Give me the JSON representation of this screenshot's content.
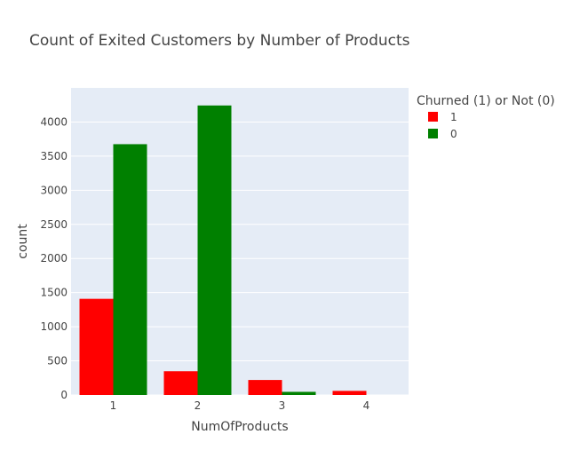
{
  "chart_data": {
    "type": "bar",
    "title": "Count of Exited Customers by Number of Products",
    "xlabel": "NumOfProducts",
    "ylabel": "count",
    "categories": [
      "1",
      "2",
      "3",
      "4"
    ],
    "y_ticks": [
      "0",
      "500",
      "1000",
      "1500",
      "2000",
      "2500",
      "3000",
      "3500",
      "4000"
    ],
    "ylim": [
      0,
      4500
    ],
    "grid": true,
    "legend": {
      "title": "Churned (1) or Not (0)",
      "placement": "right-top"
    },
    "series": [
      {
        "name": "1",
        "color": "#ff0000",
        "values": [
          1409,
          348,
          220,
          60
        ]
      },
      {
        "name": "0",
        "color": "#008000",
        "values": [
          3675,
          4242,
          46,
          0
        ]
      }
    ],
    "plot_background": "#e5ecf6"
  }
}
